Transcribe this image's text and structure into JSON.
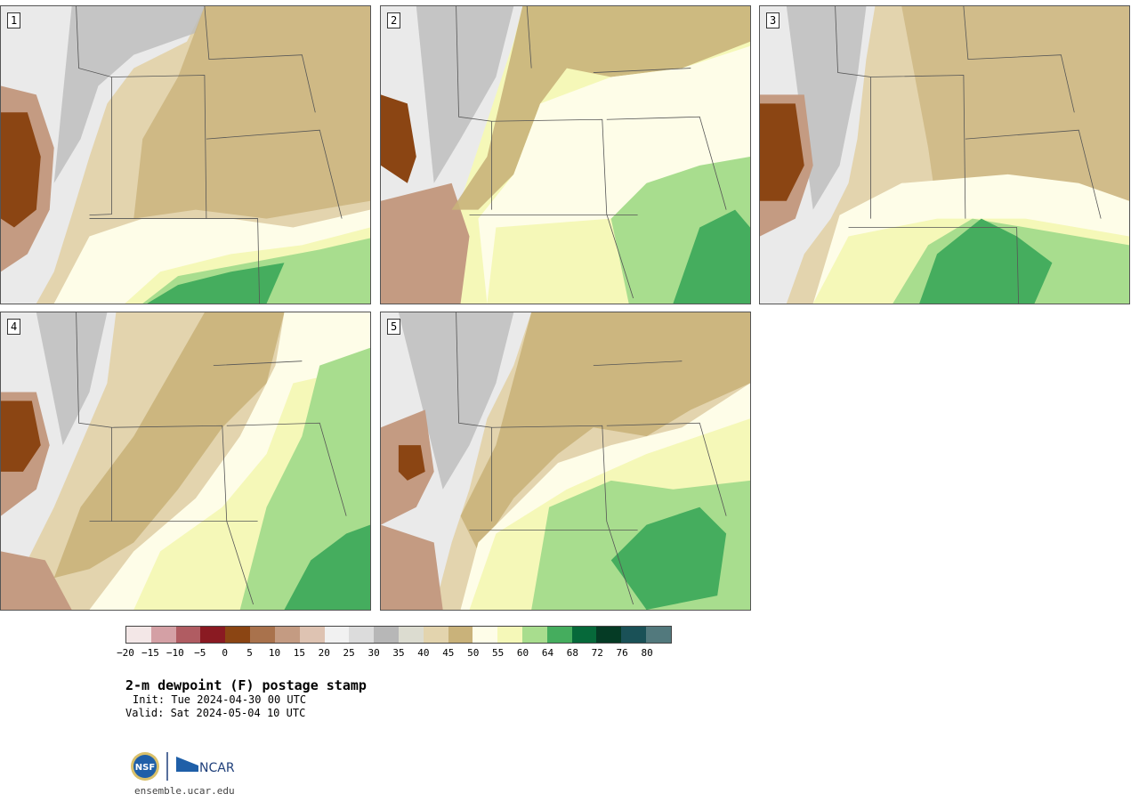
{
  "panels": [
    {
      "label": "1"
    },
    {
      "label": "2"
    },
    {
      "label": "3"
    },
    {
      "label": "4"
    },
    {
      "label": "5"
    }
  ],
  "colorbar": {
    "colors": [
      "#f3e7e7",
      "#d4a0a5",
      "#b05c62",
      "#8a1a22",
      "#8b4513",
      "#a9724c",
      "#c49b82",
      "#dec3b2",
      "#f1f1f1",
      "#dcdcdc",
      "#b7b7b7",
      "#dcdcd0",
      "#e3d4ae",
      "#c9b27a",
      "#fefde8",
      "#f5f8b8",
      "#a8dd8e",
      "#45ad5e",
      "#06693a",
      "#053b25",
      "#1a5157",
      "#52797d"
    ],
    "ticks": [
      "−20",
      "−15",
      "−10",
      "−5",
      "0",
      "5",
      "10",
      "15",
      "20",
      "25",
      "30",
      "35",
      "40",
      "45",
      "50",
      "55",
      "60",
      "64",
      "68",
      "72",
      "76",
      "80"
    ]
  },
  "title": "2-m dewpoint (F) postage stamp",
  "init": "Init: Tue 2024-04-30 00 UTC",
  "valid": "Valid: Sat 2024-05-04 10 UTC",
  "logo": {
    "nsf": "NSF",
    "ncar": "NCAR"
  },
  "site": "ensemble.ucar.edu",
  "fill_colors": {
    "west_light": "#eaeaea",
    "gray": "#bcbcbc",
    "brown_dark": "#8b4513",
    "brown_mid": "#c49b82",
    "tan_light": "#dcdcd0",
    "tan": "#e3d4ae",
    "tan_dark": "#c9b27a",
    "cream": "#fefde8",
    "yellow": "#f5f8b8",
    "green_light": "#a8dd8e",
    "green": "#45ad5e",
    "green_dark": "#06693a",
    "border": "#555555"
  }
}
